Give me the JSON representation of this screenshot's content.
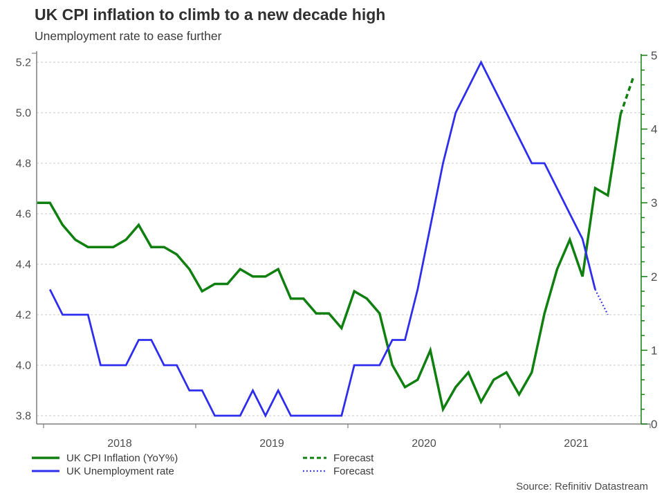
{
  "header": {
    "title": "UK CPI inflation to climb to a new decade high",
    "subtitle": "Unemployment rate to ease further"
  },
  "source": "Source: Refinitiv Datastream",
  "colors": {
    "cpi_green": "#0f7f0f",
    "unemp_blue": "#2d2df0",
    "grid": "#c9c9c9",
    "axis_gray": "#7f7f7f",
    "tick_text": "#4d4d4d",
    "year_text": "#4d4d4d"
  },
  "legend": [
    {
      "label": "UK CPI Inflation (YoY%)",
      "series": "cpi",
      "style": "solid",
      "color": "#0f7f0f"
    },
    {
      "label": "UK Unemployment rate",
      "series": "unemployment",
      "style": "solid",
      "color": "#2d2df0"
    },
    {
      "label": "Forecast",
      "series": "cpi_forecast",
      "style": "dashed",
      "color": "#0f7f0f"
    },
    {
      "label": "Forecast",
      "series": "unemployment_forecast",
      "style": "dotted",
      "color": "#2d2df0"
    }
  ],
  "chart_data": {
    "type": "line",
    "title": "UK CPI inflation to climb to a new decade high",
    "subtitle": "Unemployment rate to ease further",
    "grid": "horizontal, dashed, light gray",
    "legend_position": "bottom",
    "x_axis": {
      "tick_labels": [
        "2018",
        "2019",
        "2020",
        "2021"
      ],
      "range_decimal_years": [
        2017.95,
        2021.93
      ],
      "unit": "monthly data points, plotted mid-month"
    },
    "left_axis": {
      "used_by": "UK Unemployment rate",
      "tick_labels": [
        "5.2",
        "5.0",
        "4.8",
        "4.6",
        "4.4",
        "4.2",
        "4.0",
        "3.8"
      ],
      "tick_values": [
        5.2,
        5.0,
        4.8,
        4.6,
        4.4,
        4.2,
        4.0,
        3.8
      ],
      "range": [
        3.77,
        5.24
      ]
    },
    "right_axis": {
      "used_by": "UK CPI Inflation (YoY%)",
      "tick_labels": [
        "5",
        "4",
        "3",
        "2",
        "1",
        "0"
      ],
      "tick_values": [
        5,
        4,
        3,
        2,
        1,
        0
      ],
      "minor_tick_step": 0.2,
      "range": [
        0,
        5
      ]
    },
    "series": [
      {
        "name": "UK CPI Inflation (YoY%)",
        "axis": "right",
        "style": "solid",
        "color_key": "cpi_green",
        "start_month": "2017-12",
        "values": [
          3.0,
          3.0,
          2.7,
          2.5,
          2.4,
          2.4,
          2.4,
          2.5,
          2.7,
          2.4,
          2.4,
          2.3,
          2.1,
          1.8,
          1.9,
          1.9,
          2.1,
          2.0,
          2.0,
          2.1,
          1.7,
          1.7,
          1.5,
          1.5,
          1.3,
          1.8,
          1.7,
          1.5,
          0.8,
          0.5,
          0.6,
          1.0,
          0.2,
          0.5,
          0.7,
          0.3,
          0.6,
          0.7,
          0.4,
          0.7,
          1.5,
          2.1,
          2.5,
          2.0,
          3.2,
          3.1,
          4.2
        ]
      },
      {
        "name": "UK CPI Inflation forecast",
        "axis": "right",
        "style": "dashed",
        "color_key": "cpi_green",
        "start_month": "2021-10",
        "values": [
          4.2,
          4.7
        ]
      },
      {
        "name": "UK Unemployment rate",
        "axis": "left",
        "style": "solid",
        "color_key": "unemp_blue",
        "start_month": "2018-01",
        "values": [
          4.3,
          4.2,
          4.2,
          4.2,
          4.0,
          4.0,
          4.0,
          4.1,
          4.1,
          4.0,
          4.0,
          3.9,
          3.9,
          3.8,
          3.8,
          3.8,
          3.9,
          3.8,
          3.9,
          3.8,
          3.8,
          3.8,
          3.8,
          3.8,
          4.0,
          4.0,
          4.0,
          4.1,
          4.1,
          4.3,
          4.55,
          4.8,
          5.0,
          5.1,
          5.2,
          5.1,
          5.0,
          4.9,
          4.8,
          4.8,
          4.7,
          4.6,
          4.5,
          4.3
        ]
      },
      {
        "name": "UK Unemployment rate forecast",
        "axis": "left",
        "style": "dotted",
        "color_key": "unemp_blue",
        "start_month": "2021-08",
        "values": [
          4.3,
          4.2
        ]
      }
    ]
  }
}
